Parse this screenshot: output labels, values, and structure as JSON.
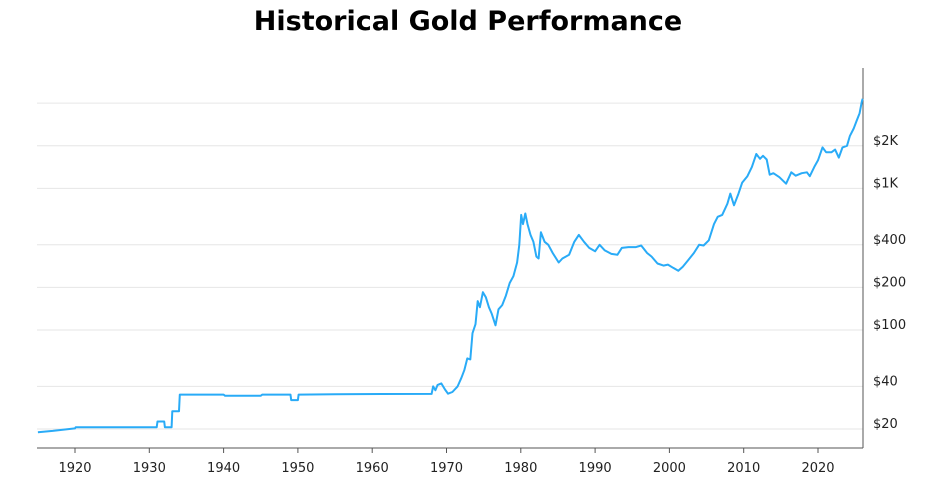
{
  "chart_data": {
    "type": "line",
    "title": "Historical Gold Performance",
    "xlabel": "",
    "ylabel": "",
    "y_scale": "log",
    "y_axis_side": "right",
    "xlim": [
      1915,
      2026
    ],
    "ylim": [
      15,
      5500
    ],
    "grid": "horizontal",
    "line_color": "#29abf7",
    "x_ticks": [
      1920,
      1930,
      1940,
      1950,
      1960,
      1970,
      1980,
      1990,
      2000,
      2010,
      2020
    ],
    "y_ticks": [
      {
        "value": 20,
        "label": "$20"
      },
      {
        "value": 40,
        "label": "$40"
      },
      {
        "value": 100,
        "label": "$100"
      },
      {
        "value": 200,
        "label": "$200"
      },
      {
        "value": 400,
        "label": "$400"
      },
      {
        "value": 1000,
        "label": "$1K"
      },
      {
        "value": 2000,
        "label": "$2K"
      },
      {
        "value": 4000,
        "label": ""
      }
    ],
    "series": [
      {
        "points": [
          [
            1915,
            19.0
          ],
          [
            1917,
            19.4
          ],
          [
            1920,
            20.2
          ],
          [
            1920.1,
            20.6
          ],
          [
            1931,
            20.6
          ],
          [
            1931.1,
            22.6
          ],
          [
            1932,
            22.6
          ],
          [
            1932.1,
            20.6
          ],
          [
            1933,
            20.6
          ],
          [
            1933.1,
            26.7
          ],
          [
            1934,
            26.7
          ],
          [
            1934.1,
            35.0
          ],
          [
            1940,
            35.0
          ],
          [
            1940.2,
            34.3
          ],
          [
            1945,
            34.3
          ],
          [
            1945.2,
            35.0
          ],
          [
            1949,
            35.0
          ],
          [
            1949.1,
            32.0
          ],
          [
            1950,
            32.0
          ],
          [
            1950.1,
            35.0
          ],
          [
            1955,
            35.2
          ],
          [
            1958,
            35.3
          ],
          [
            1968,
            35.4
          ],
          [
            1968.2,
            40.0
          ],
          [
            1968.5,
            37.5
          ],
          [
            1968.8,
            41.0
          ],
          [
            1969.3,
            42.0
          ],
          [
            1969.8,
            38.0
          ],
          [
            1970.2,
            35.5
          ],
          [
            1970.8,
            36.5
          ],
          [
            1971.5,
            40.0
          ],
          [
            1972,
            46.0
          ],
          [
            1972.4,
            52.0
          ],
          [
            1972.8,
            63.0
          ],
          [
            1973.2,
            62.0
          ],
          [
            1973.5,
            95.0
          ],
          [
            1973.9,
            110.0
          ],
          [
            1974.2,
            160.0
          ],
          [
            1974.5,
            145.0
          ],
          [
            1974.9,
            185.0
          ],
          [
            1975.3,
            170.0
          ],
          [
            1975.7,
            145.0
          ],
          [
            1976.1,
            130.0
          ],
          [
            1976.6,
            108.0
          ],
          [
            1977,
            140.0
          ],
          [
            1977.5,
            150.0
          ],
          [
            1978,
            175.0
          ],
          [
            1978.5,
            215.0
          ],
          [
            1979,
            240.0
          ],
          [
            1979.5,
            300.0
          ],
          [
            1979.8,
            400.0
          ],
          [
            1980.05,
            650.0
          ],
          [
            1980.3,
            560.0
          ],
          [
            1980.6,
            665.0
          ],
          [
            1980.9,
            560.0
          ],
          [
            1981.3,
            470.0
          ],
          [
            1981.7,
            420.0
          ],
          [
            1982.1,
            330.0
          ],
          [
            1982.4,
            320.0
          ],
          [
            1982.7,
            490.0
          ],
          [
            1983.2,
            420.0
          ],
          [
            1983.7,
            400.0
          ],
          [
            1984.3,
            350.0
          ],
          [
            1985.1,
            300.0
          ],
          [
            1985.6,
            320.0
          ],
          [
            1986.5,
            340.0
          ],
          [
            1987.2,
            420.0
          ],
          [
            1987.8,
            470.0
          ],
          [
            1988.5,
            420.0
          ],
          [
            1989.2,
            380.0
          ],
          [
            1990,
            360.0
          ],
          [
            1990.6,
            400.0
          ],
          [
            1991.3,
            365.0
          ],
          [
            1992.2,
            345.0
          ],
          [
            1993,
            340.0
          ],
          [
            1993.6,
            380.0
          ],
          [
            1994.5,
            385.0
          ],
          [
            1995.5,
            385.0
          ],
          [
            1996.2,
            395.0
          ],
          [
            1997,
            350.0
          ],
          [
            1997.6,
            330.0
          ],
          [
            1998.4,
            295.0
          ],
          [
            1999.2,
            285.0
          ],
          [
            1999.8,
            290.0
          ],
          [
            2000.5,
            275.0
          ],
          [
            2001.2,
            262.0
          ],
          [
            2001.8,
            280.0
          ],
          [
            2002.5,
            310.0
          ],
          [
            2003.3,
            350.0
          ],
          [
            2004,
            400.0
          ],
          [
            2004.6,
            395.0
          ],
          [
            2005.3,
            430.0
          ],
          [
            2006,
            560.0
          ],
          [
            2006.5,
            630.0
          ],
          [
            2007.1,
            650.0
          ],
          [
            2007.8,
            780.0
          ],
          [
            2008.2,
            920.0
          ],
          [
            2008.7,
            760.0
          ],
          [
            2009.3,
            920.0
          ],
          [
            2009.8,
            1100.0
          ],
          [
            2010.5,
            1220.0
          ],
          [
            2011.1,
            1420.0
          ],
          [
            2011.7,
            1750.0
          ],
          [
            2012.2,
            1620.0
          ],
          [
            2012.6,
            1700.0
          ],
          [
            2013.1,
            1600.0
          ],
          [
            2013.5,
            1250.0
          ],
          [
            2014,
            1280.0
          ],
          [
            2014.8,
            1200.0
          ],
          [
            2015.7,
            1080.0
          ],
          [
            2016.4,
            1300.0
          ],
          [
            2017,
            1230.0
          ],
          [
            2017.8,
            1280.0
          ],
          [
            2018.5,
            1300.0
          ],
          [
            2018.9,
            1220.0
          ],
          [
            2019.5,
            1420.0
          ],
          [
            2020,
            1580.0
          ],
          [
            2020.6,
            1950.0
          ],
          [
            2021.1,
            1800.0
          ],
          [
            2021.8,
            1800.0
          ],
          [
            2022.3,
            1880.0
          ],
          [
            2022.8,
            1650.0
          ],
          [
            2023.3,
            1950.0
          ],
          [
            2023.9,
            2000.0
          ],
          [
            2024.3,
            2350.0
          ],
          [
            2024.8,
            2650.0
          ],
          [
            2025.2,
            3000.0
          ],
          [
            2025.6,
            3400.0
          ],
          [
            2025.9,
            4100.0
          ],
          [
            2026,
            4300.0
          ]
        ]
      }
    ]
  }
}
